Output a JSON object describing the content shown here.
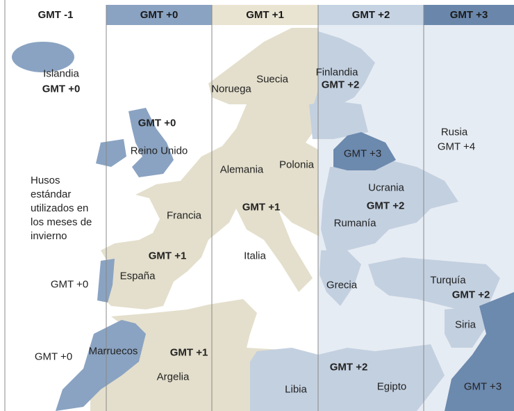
{
  "header": {
    "zones": [
      "GMT -1",
      "GMT +0",
      "GMT +1",
      "GMT +2",
      "GMT +3"
    ]
  },
  "note": "Husos estándar utilizados en los meses de invierno",
  "labels": [
    {
      "text": "Islandia"
    },
    {
      "text": "GMT +0"
    },
    {
      "text": "Noruega"
    },
    {
      "text": "Suecia"
    },
    {
      "text": "Finlandia"
    },
    {
      "text": "GMT +2"
    },
    {
      "text": "GMT +0"
    },
    {
      "text": "Reino Unido"
    },
    {
      "text": "Rusia"
    },
    {
      "text": "GMT +4"
    },
    {
      "text": "Alemania"
    },
    {
      "text": "Polonia"
    },
    {
      "text": "GMT +3"
    },
    {
      "text": "Ucrania"
    },
    {
      "text": "GMT +2"
    },
    {
      "text": "Francia"
    },
    {
      "text": "GMT +1"
    },
    {
      "text": "Rumanía"
    },
    {
      "text": "GMT +1"
    },
    {
      "text": "Italia"
    },
    {
      "text": "España"
    },
    {
      "text": "GMT +0"
    },
    {
      "text": "Grecia"
    },
    {
      "text": "Turquía"
    },
    {
      "text": "GMT +2"
    },
    {
      "text": "Siria"
    },
    {
      "text": "GMT +0"
    },
    {
      "text": "Marruecos"
    },
    {
      "text": "GMT +1"
    },
    {
      "text": "Argelia"
    },
    {
      "text": "GMT +2"
    },
    {
      "text": "Libia"
    },
    {
      "text": "Egipto"
    },
    {
      "text": "GMT +3"
    }
  ]
}
